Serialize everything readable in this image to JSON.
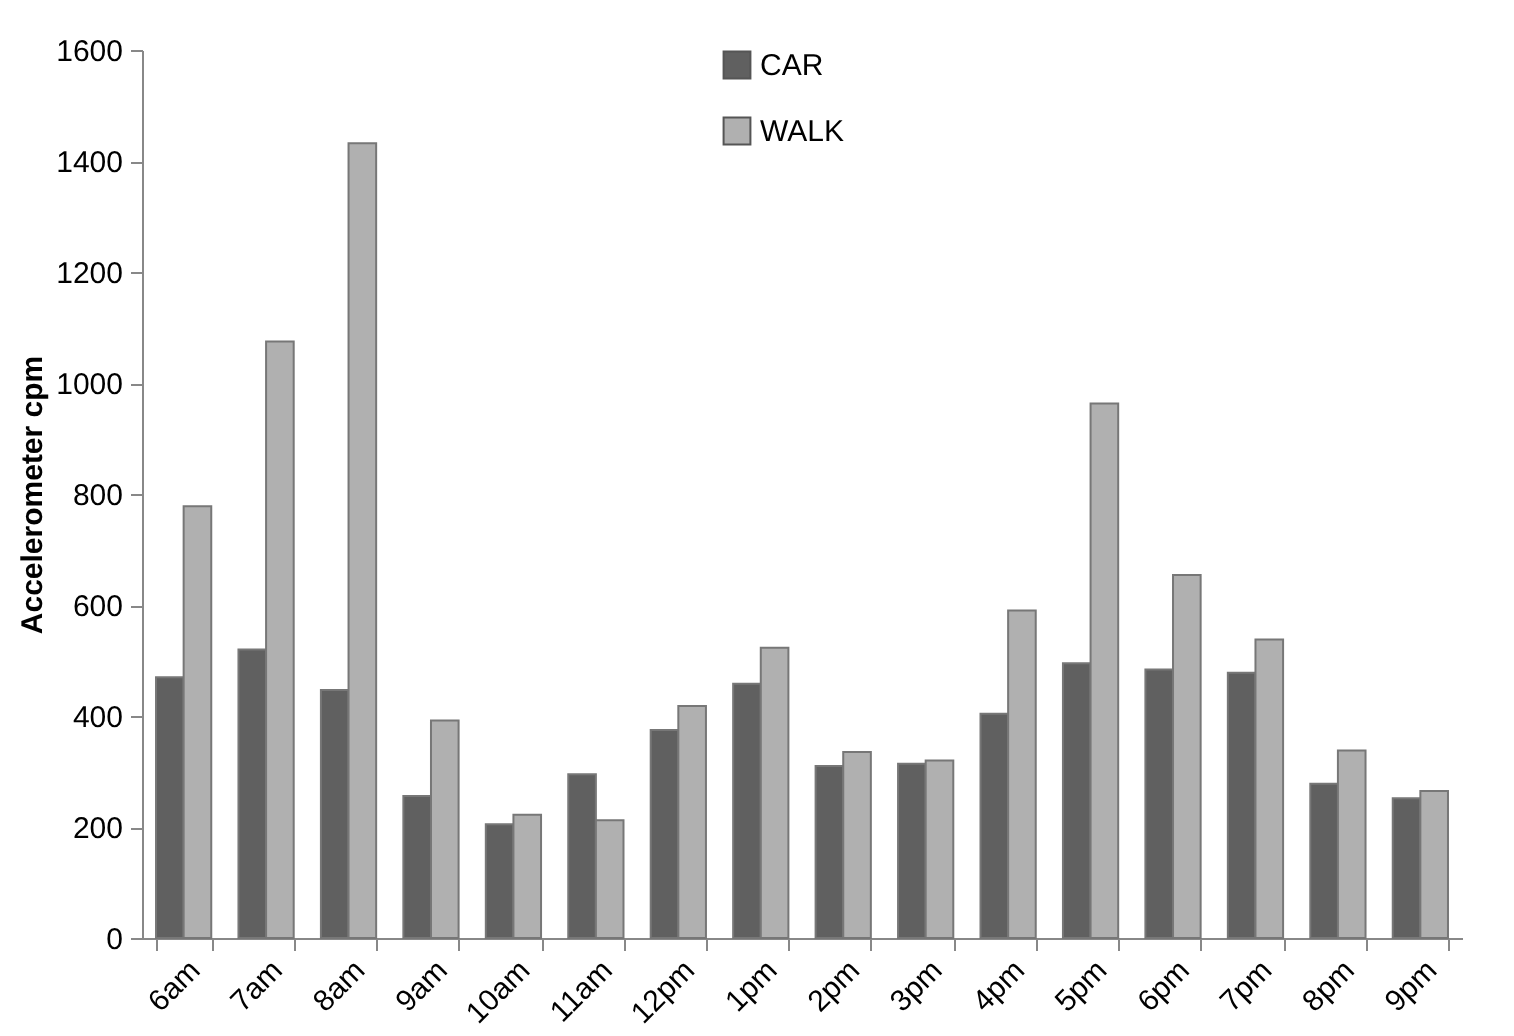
{
  "chart_data": {
    "type": "bar",
    "ylabel": "Accelerometer cpm",
    "categories": [
      "6am",
      "7am",
      "8am",
      "9am",
      "10am",
      "11am",
      "12pm",
      "1pm",
      "2pm",
      "3pm",
      "4pm",
      "5pm",
      "6pm",
      "7pm",
      "8pm",
      "9pm"
    ],
    "series": [
      {
        "name": "CAR",
        "color": "#606060",
        "values": [
          470,
          520,
          447,
          256,
          205,
          295,
          375,
          458,
          310,
          314,
          404,
          495,
          484,
          478,
          278,
          252
        ]
      },
      {
        "name": "WALK",
        "color": "#b0b0b0",
        "values": [
          778,
          1075,
          1432,
          392,
          222,
          212,
          418,
          523,
          335,
          320,
          590,
          963,
          654,
          538,
          338,
          265
        ]
      }
    ],
    "ylim": [
      0,
      1600
    ],
    "yticks": [
      0,
      200,
      400,
      600,
      800,
      1000,
      1200,
      1400,
      1600
    ],
    "grid": false,
    "legend": "top"
  }
}
